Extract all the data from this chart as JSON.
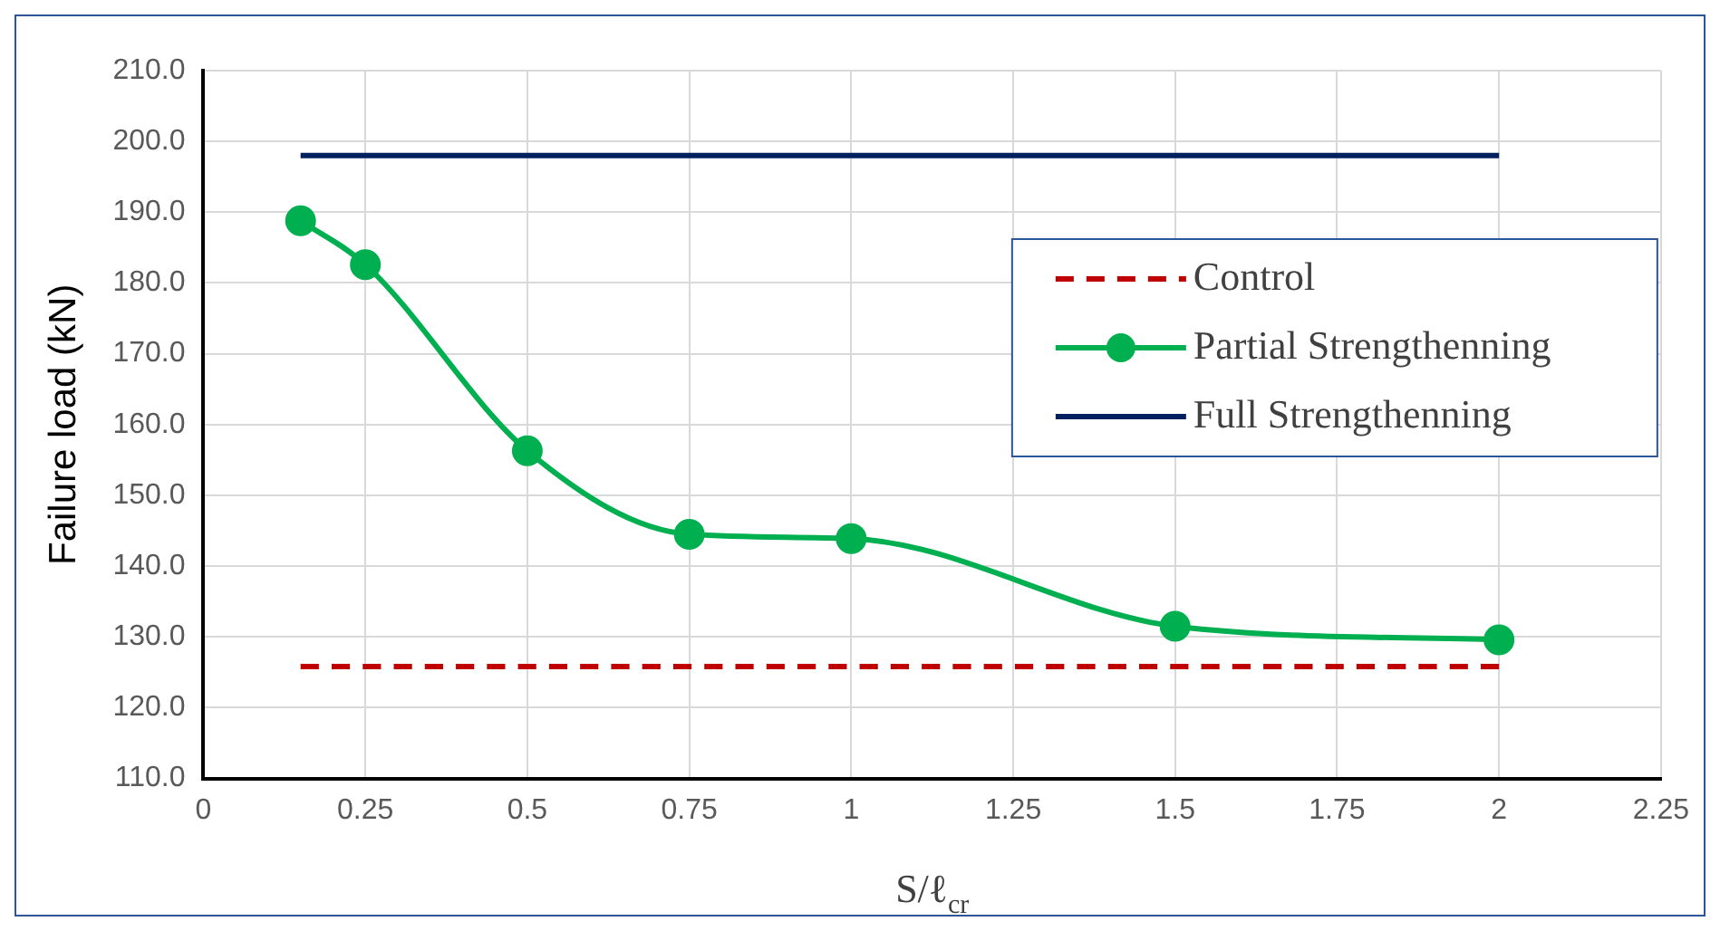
{
  "chart_data": {
    "type": "line",
    "xlabel": "S/ℓ$_{cr}$",
    "ylabel": "Failure load (kN)",
    "xlim": [
      0,
      2.25
    ],
    "xticks": [
      0,
      0.25,
      0.5,
      0.75,
      1,
      1.25,
      1.5,
      1.75,
      2,
      2.25
    ],
    "ylim": [
      110,
      210
    ],
    "yticks": [
      {
        "value": 110,
        "label": "110.0"
      },
      {
        "value": 120,
        "label": "120.0"
      },
      {
        "value": 130,
        "label": "130.0"
      },
      {
        "value": 140,
        "label": "140.0"
      },
      {
        "value": 150,
        "label": "150.0"
      },
      {
        "value": 160,
        "label": "160.0"
      },
      {
        "value": 170,
        "label": "170.0"
      },
      {
        "value": 180,
        "label": "180.0"
      },
      {
        "value": 190,
        "label": "190.0"
      },
      {
        "value": 200,
        "label": "200.0"
      },
      {
        "value": 210,
        "label": "210.0"
      }
    ],
    "grid": true,
    "legend": "top right",
    "series": [
      {
        "name": "Control",
        "color": "#c00000",
        "x": [
          0.15,
          2
        ],
        "values": [
          125.8,
          125.8
        ],
        "line_style": "dashed",
        "marker": "none"
      },
      {
        "name": "Partial Strengthenning",
        "color": "#00b050",
        "x": [
          0.15,
          0.25,
          0.5,
          0.75,
          1,
          1.5,
          2
        ],
        "values": [
          188.8,
          182.6,
          156.3,
          144.5,
          143.9,
          131.5,
          129.6
        ],
        "line_style": "solid",
        "marker": "circle"
      },
      {
        "name": "Full Strengthenning",
        "color": "#002060",
        "x": [
          0.15,
          2
        ],
        "values": [
          198,
          198
        ],
        "line_style": "solid",
        "marker": "none"
      }
    ]
  }
}
